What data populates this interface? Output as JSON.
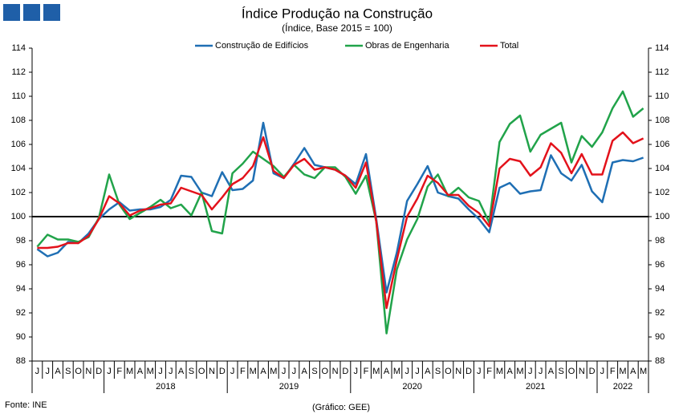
{
  "chart_data": {
    "type": "line",
    "title": "Índice Produção na Construção",
    "subtitle": "(Índice, Base 2015 = 100)",
    "source": "Fonte: INE",
    "credit": "(Gráfico: GEE)",
    "categories": [
      "J",
      "J",
      "A",
      "S",
      "O",
      "N",
      "D",
      "J",
      "F",
      "M",
      "A",
      "M",
      "J",
      "J",
      "A",
      "S",
      "O",
      "N",
      "D",
      "J",
      "F",
      "M",
      "A",
      "M",
      "J",
      "J",
      "A",
      "S",
      "O",
      "N",
      "D",
      "J",
      "F",
      "M",
      "A",
      "M",
      "J",
      "J",
      "A",
      "S",
      "O",
      "N",
      "D",
      "J",
      "F",
      "M",
      "A",
      "M",
      "J",
      "J",
      "A",
      "S",
      "O",
      "N",
      "D",
      "J",
      "F",
      "M",
      "A",
      "M"
    ],
    "x_groups": [
      {
        "label": null,
        "count": 7
      },
      {
        "label": "2018",
        "count": 12
      },
      {
        "label": "2019",
        "count": 12
      },
      {
        "label": "2020",
        "count": 12
      },
      {
        "label": "2021",
        "count": 12
      },
      {
        "label": "2022",
        "count": 5
      }
    ],
    "series": [
      {
        "name": "Construção de Edifícios",
        "color": "#1f6fb4",
        "values": [
          97.3,
          96.7,
          97.0,
          97.9,
          97.8,
          98.6,
          99.8,
          100.6,
          101.2,
          100.5,
          100.6,
          100.6,
          100.8,
          101.4,
          103.4,
          103.3,
          102.0,
          101.7,
          103.7,
          102.2,
          102.3,
          103.0,
          107.8,
          103.6,
          103.2,
          104.4,
          105.7,
          104.3,
          104.1,
          103.9,
          103.4,
          102.7,
          105.2,
          99.8,
          93.7,
          97.0,
          101.3,
          102.7,
          104.2,
          102.0,
          101.7,
          101.5,
          100.6,
          99.8,
          98.7,
          102.4,
          102.8,
          101.9,
          102.1,
          102.2,
          105.1,
          103.6,
          103.0,
          104.3,
          102.1,
          101.2,
          104.5,
          104.7,
          104.6,
          104.9
        ]
      },
      {
        "name": "Obras de Engenharia",
        "color": "#21a34a",
        "values": [
          97.5,
          98.5,
          98.1,
          98.1,
          97.9,
          98.3,
          99.9,
          103.5,
          101.0,
          99.8,
          100.3,
          100.8,
          101.4,
          100.7,
          101.0,
          100.1,
          102.0,
          98.8,
          98.6,
          103.6,
          104.4,
          105.4,
          104.8,
          104.2,
          103.3,
          104.3,
          103.5,
          103.2,
          104.1,
          104.1,
          103.3,
          101.9,
          103.4,
          99.6,
          90.3,
          95.6,
          98.1,
          99.8,
          102.5,
          103.5,
          101.7,
          102.4,
          101.6,
          101.3,
          99.5,
          106.2,
          107.7,
          108.4,
          105.4,
          106.8,
          107.3,
          107.8,
          104.5,
          106.7,
          105.8,
          107.0,
          109.0,
          110.4,
          108.3,
          109.0
        ]
      },
      {
        "name": "Total",
        "color": "#e3121b",
        "values": [
          97.4,
          97.4,
          97.5,
          97.8,
          97.8,
          98.4,
          99.8,
          101.7,
          101.1,
          100.1,
          100.5,
          100.7,
          101.0,
          101.1,
          102.4,
          102.1,
          101.8,
          100.6,
          101.6,
          102.7,
          103.2,
          104.2,
          106.6,
          103.8,
          103.2,
          104.3,
          104.8,
          103.9,
          104.1,
          103.9,
          103.4,
          102.4,
          104.5,
          99.6,
          92.4,
          96.4,
          100.0,
          101.5,
          103.4,
          102.8,
          101.8,
          101.8,
          100.9,
          100.3,
          99.2,
          104.0,
          104.8,
          104.6,
          103.4,
          104.1,
          106.1,
          105.3,
          103.6,
          105.2,
          103.5,
          103.5,
          106.3,
          107.0,
          106.1,
          106.5
        ]
      }
    ],
    "reference_line": 100,
    "ylim": [
      88,
      114
    ],
    "yticks": [
      88,
      90,
      92,
      94,
      96,
      98,
      100,
      102,
      104,
      106,
      108,
      110,
      112,
      114
    ],
    "y2lim": [
      88,
      114
    ],
    "y2ticks": [
      88,
      90,
      92,
      94,
      96,
      98,
      100,
      102,
      104,
      106,
      108,
      110,
      112,
      114
    ],
    "legend": "top"
  }
}
